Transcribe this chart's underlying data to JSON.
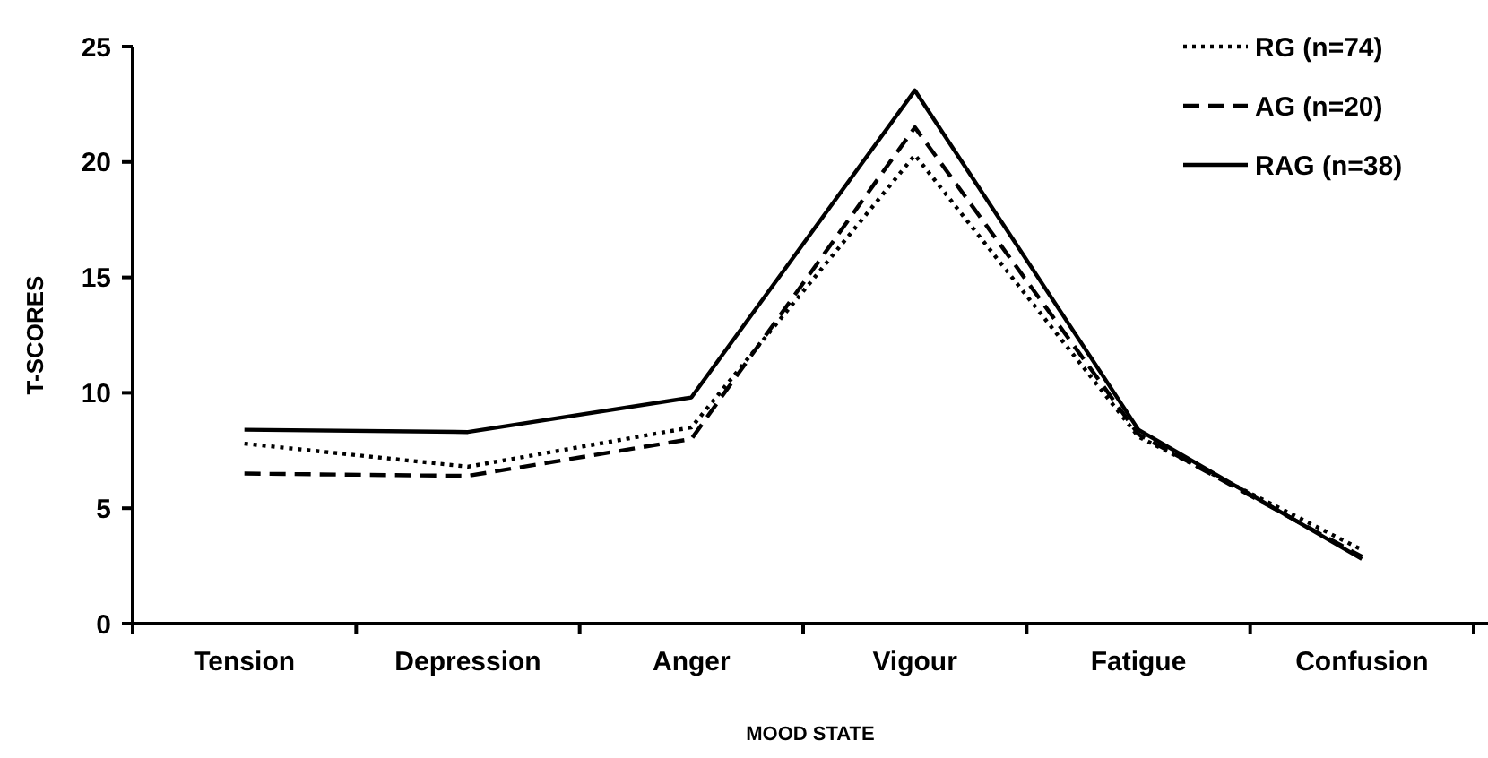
{
  "chart_data": {
    "type": "line",
    "xlabel": "MOOD STATE",
    "ylabel": "T-SCORES",
    "categories": [
      "Tension",
      "Depression",
      "Anger",
      "Vigour",
      "Fatigue",
      "Confusion"
    ],
    "ylim": [
      0,
      25
    ],
    "yticks": [
      0,
      5,
      10,
      15,
      20,
      25
    ],
    "grid": false,
    "legend": "top right",
    "marker": "none",
    "series": [
      {
        "name": "RG (n=74)",
        "color": "#000000",
        "line_style": "dotted",
        "values": [
          7.8,
          6.8,
          8.5,
          20.3,
          8.1,
          3.2
        ]
      },
      {
        "name": "AG (n=20)",
        "color": "#000000",
        "line_style": "dashed",
        "values": [
          6.5,
          6.4,
          8.0,
          21.5,
          8.2,
          2.9
        ]
      },
      {
        "name": "RAG (n=38)",
        "color": "#000000",
        "line_style": "solid",
        "values": [
          8.4,
          8.3,
          9.8,
          23.1,
          8.4,
          2.8
        ]
      }
    ]
  }
}
